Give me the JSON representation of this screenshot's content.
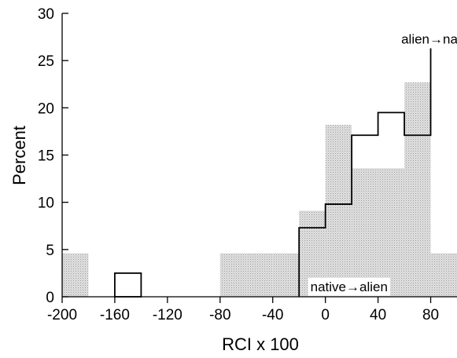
{
  "chart_data": {
    "type": "bar",
    "xlabel": "RCI x 100",
    "ylabel": "Percent",
    "xlim": [
      -200,
      100
    ],
    "ylim": [
      0,
      30
    ],
    "xticks": [
      -200,
      -160,
      -120,
      -80,
      -40,
      0,
      40,
      80
    ],
    "yticks": [
      0,
      5,
      10,
      15,
      20,
      25,
      30
    ],
    "bin_width": 20,
    "grid": false,
    "series": [
      {
        "style": "shaded",
        "bins": [
          {
            "x0": -200,
            "x1": -180,
            "value": 4.6
          },
          {
            "x0": -80,
            "x1": -60,
            "value": 4.6
          },
          {
            "x0": -60,
            "x1": -40,
            "value": 4.6
          },
          {
            "x0": -40,
            "x1": -20,
            "value": 4.6
          },
          {
            "x0": -20,
            "x1": 0,
            "value": 9.1
          },
          {
            "x0": 0,
            "x1": 20,
            "value": 18.2
          },
          {
            "x0": 20,
            "x1": 40,
            "value": 13.6
          },
          {
            "x0": 40,
            "x1": 60,
            "value": 13.6
          },
          {
            "x0": 60,
            "x1": 80,
            "value": 22.7
          },
          {
            "x0": 80,
            "x1": 100,
            "value": 4.6
          }
        ]
      },
      {
        "style": "outline",
        "bins": [
          {
            "x0": -160,
            "x1": -140,
            "value": 2.5
          },
          {
            "x0": -20,
            "x1": 0,
            "value": 7.3
          },
          {
            "x0": 0,
            "x1": 20,
            "value": 9.8
          },
          {
            "x0": 20,
            "x1": 40,
            "value": 17.1
          },
          {
            "x0": 40,
            "x1": 60,
            "value": 19.5
          },
          {
            "x0": 60,
            "x1": 80,
            "value": 17.1
          },
          {
            "x0": 80,
            "x1": 100,
            "value": 26.8
          }
        ]
      }
    ],
    "annotations": [
      {
        "text": "alien→native",
        "x": 87,
        "y": 27.3
      },
      {
        "text": "native→alien",
        "x": 18,
        "y": 1.1
      }
    ]
  }
}
